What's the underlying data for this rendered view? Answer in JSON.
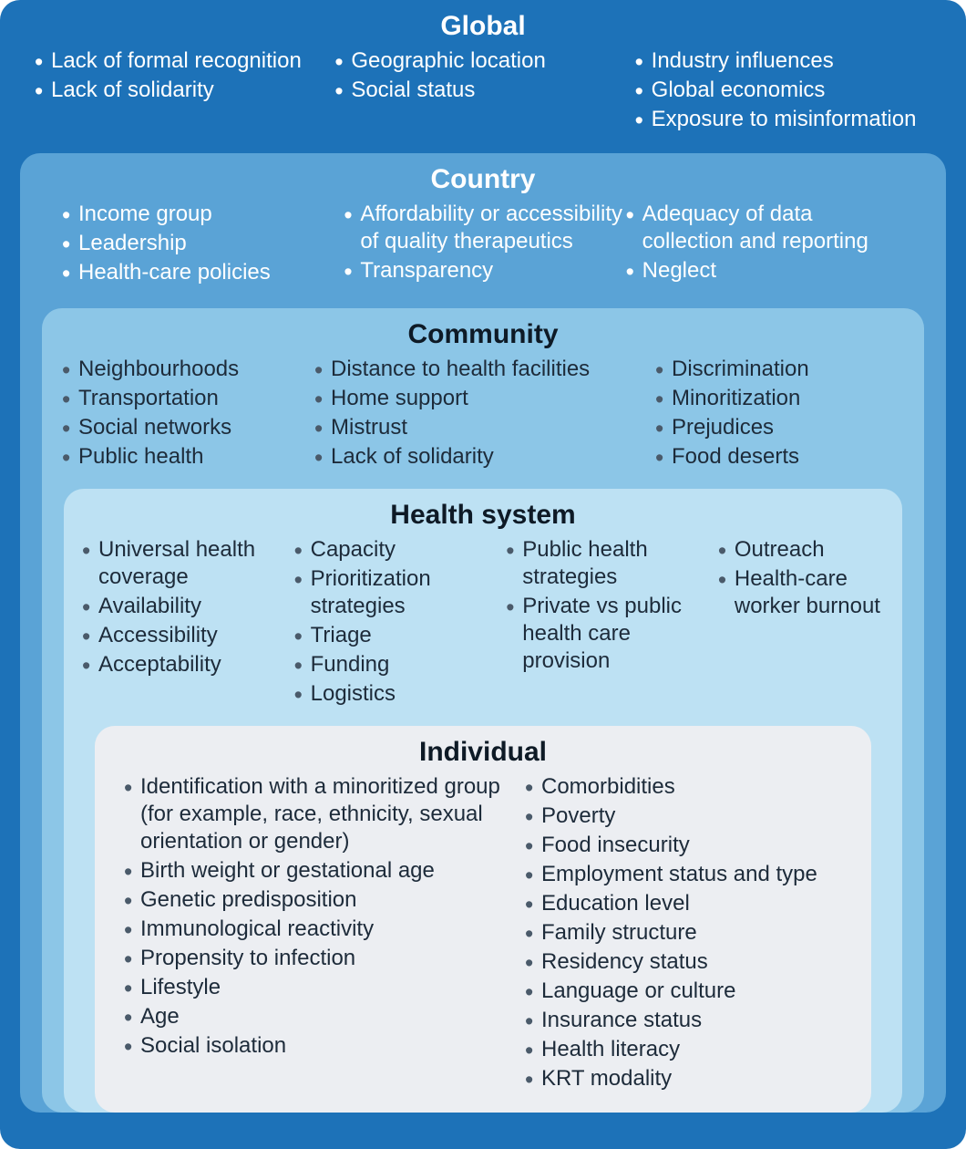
{
  "diagram": {
    "type": "nested-layers",
    "font_family": "sans-serif",
    "border_radius": 22,
    "layers": [
      {
        "id": "global",
        "title": "Global",
        "bg": "#1d72b8",
        "title_color": "#ffffff",
        "text_color": "#ffffff",
        "bullet_color": "#ffffff",
        "title_fontsize": 30,
        "item_fontsize": 24,
        "columns": [
          [
            "Lack of formal recognition",
            "Lack of solidarity"
          ],
          [
            "Geographic location",
            "Social status"
          ],
          [
            "Industry influences",
            "Global economics",
            "Exposure to misinformation"
          ]
        ]
      },
      {
        "id": "country",
        "title": "Country",
        "bg": "#5aa3d6",
        "title_color": "#ffffff",
        "text_color": "#ffffff",
        "bullet_color": "#ffffff",
        "title_fontsize": 30,
        "item_fontsize": 24,
        "columns": [
          [
            "Income group",
            "Leadership",
            "Health-care policies"
          ],
          [
            "Affordability or accessibility of quality therapeutics",
            "Transparency"
          ],
          [
            "Adequacy of data collection and reporting",
            "Neglect"
          ]
        ]
      },
      {
        "id": "community",
        "title": "Community",
        "bg": "#8cc6e7",
        "title_color": "#0e1a26",
        "text_color": "#1d2b3a",
        "bullet_color": "#4a5a6a",
        "title_fontsize": 30,
        "item_fontsize": 24,
        "columns": [
          [
            "Neighbourhoods",
            "Transportation",
            "Social networks",
            "Public health"
          ],
          [
            "Distance to health facilities",
            "Home support",
            "Mistrust",
            "Lack of solidarity"
          ],
          [
            "Discrimination",
            "Minoritization",
            "Prejudices",
            "Food deserts"
          ]
        ]
      },
      {
        "id": "health",
        "title": "Health system",
        "bg": "#bde1f3",
        "title_color": "#0e1a26",
        "text_color": "#1d2b3a",
        "bullet_color": "#4a5a6a",
        "title_fontsize": 30,
        "item_fontsize": 24,
        "columns": [
          [
            "Universal health coverage",
            "Availability",
            "Accessibility",
            "Acceptability"
          ],
          [
            "Capacity",
            "Prioritization strategies",
            "Triage",
            "Funding",
            "Logistics"
          ],
          [
            "Public health strategies",
            "Private vs public health care provision"
          ],
          [
            "Outreach",
            "Health-care worker burnout"
          ]
        ]
      },
      {
        "id": "individual",
        "title": "Individual",
        "bg": "#eceef2",
        "title_color": "#0e1a26",
        "text_color": "#1d2b3a",
        "bullet_color": "#4a5a6a",
        "title_fontsize": 30,
        "item_fontsize": 24,
        "columns": [
          [
            "Identification with a minoritized group (for example, race, ethnicity, sexual orientation or gender)",
            "Birth weight or gestational age",
            "Genetic predisposition",
            "Immunological reactivity",
            "Propensity to infection",
            "Lifestyle",
            "Age",
            "Social isolation"
          ],
          [
            "Comorbidities",
            "Poverty",
            "Food insecurity",
            "Employment status and type",
            "Education level",
            "Family structure",
            "Residency status",
            "Language or culture",
            "Insurance status",
            "Health literacy",
            "KRT modality"
          ]
        ]
      }
    ]
  }
}
